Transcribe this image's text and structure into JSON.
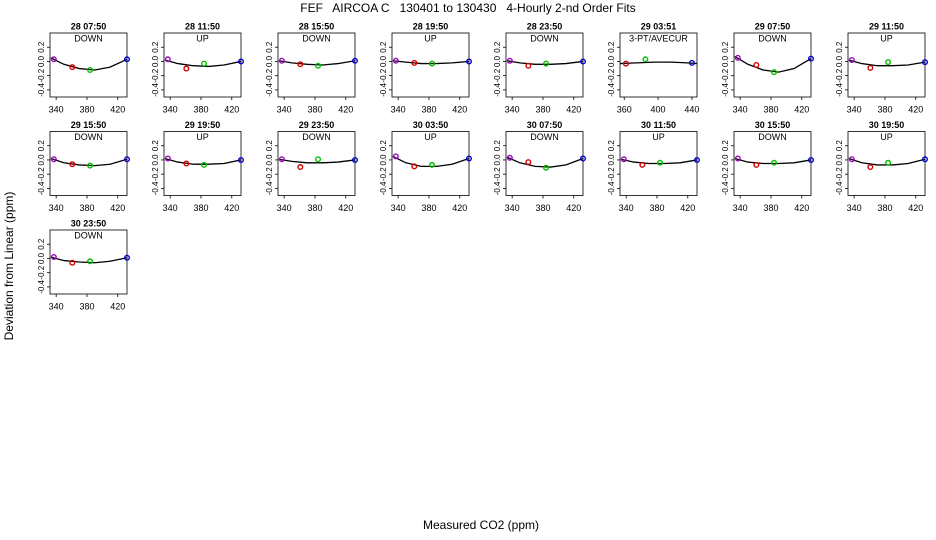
{
  "figure": {
    "title": "FEF   AIRCOA C   130401 to 130430   4-Hourly 2-nd Order Fits",
    "xlabel": "Measured CO2 (ppm)",
    "ylabel": "Deviation from Linear (ppm)"
  },
  "chart_data": [
    {
      "type": "scatter",
      "title": "28 07:50",
      "subtitle": "DOWN",
      "xlim": [
        332,
        432
      ],
      "ylim": [
        -0.5,
        0.4
      ],
      "xticks": [
        340,
        380,
        420
      ],
      "yticks": [
        0.2,
        {
          "value": 0,
          "label": "0.0"
        },
        -0.2,
        -0.4
      ],
      "points": {
        "x": [
          337,
          361,
          384,
          432
        ],
        "y": [
          0.03,
          -0.08,
          -0.12,
          0.03
        ],
        "colors": [
          "#a000c0",
          "#d00000",
          "#00c000",
          "#0000d0"
        ]
      },
      "fit": {
        "x": [
          333,
          350,
          370,
          390,
          410,
          432
        ],
        "y": [
          0.05,
          -0.04,
          -0.1,
          -0.12,
          -0.08,
          0.03
        ]
      }
    },
    {
      "type": "scatter",
      "title": "28 11:50",
      "subtitle": "UP",
      "xlim": [
        332,
        432
      ],
      "ylim": [
        -0.5,
        0.4
      ],
      "xticks": [
        340,
        380,
        420
      ],
      "yticks": [
        0.2,
        {
          "value": 0,
          "label": "0.0"
        },
        -0.2,
        -0.4
      ],
      "points": {
        "x": [
          337,
          361,
          384,
          432
        ],
        "y": [
          0.03,
          -0.1,
          -0.03,
          0.0
        ],
        "colors": [
          "#a000c0",
          "#d00000",
          "#00c000",
          "#0000d0"
        ]
      },
      "fit": {
        "x": [
          333,
          350,
          370,
          390,
          410,
          432
        ],
        "y": [
          0.02,
          -0.03,
          -0.06,
          -0.07,
          -0.05,
          0.0
        ]
      }
    },
    {
      "type": "scatter",
      "title": "28 15:50",
      "subtitle": "DOWN",
      "xlim": [
        332,
        432
      ],
      "ylim": [
        -0.5,
        0.4
      ],
      "xticks": [
        340,
        380,
        420
      ],
      "yticks": [
        0.2,
        {
          "value": 0,
          "label": "0.0"
        },
        -0.2,
        -0.4
      ],
      "points": {
        "x": [
          337,
          361,
          384,
          432
        ],
        "y": [
          0.01,
          -0.04,
          -0.06,
          0.01
        ],
        "colors": [
          "#a000c0",
          "#d00000",
          "#00c000",
          "#0000d0"
        ]
      },
      "fit": {
        "x": [
          333,
          350,
          370,
          390,
          410,
          432
        ],
        "y": [
          0.01,
          -0.02,
          -0.04,
          -0.05,
          -0.03,
          0.01
        ]
      }
    },
    {
      "type": "scatter",
      "title": "28 19:50",
      "subtitle": "UP",
      "xlim": [
        332,
        432
      ],
      "ylim": [
        -0.5,
        0.4
      ],
      "xticks": [
        340,
        380,
        420
      ],
      "yticks": [
        0.2,
        {
          "value": 0,
          "label": "0.0"
        },
        -0.2,
        -0.4
      ],
      "points": {
        "x": [
          337,
          361,
          384,
          432
        ],
        "y": [
          0.01,
          -0.02,
          -0.03,
          0.0
        ],
        "colors": [
          "#a000c0",
          "#d00000",
          "#00c000",
          "#0000d0"
        ]
      },
      "fit": {
        "x": [
          333,
          350,
          370,
          390,
          410,
          432
        ],
        "y": [
          0.01,
          -0.01,
          -0.03,
          -0.03,
          -0.02,
          0.0
        ]
      }
    },
    {
      "type": "scatter",
      "title": "28 23:50",
      "subtitle": "DOWN",
      "xlim": [
        332,
        432
      ],
      "ylim": [
        -0.5,
        0.4
      ],
      "xticks": [
        340,
        380,
        420
      ],
      "yticks": [
        0.2,
        {
          "value": 0,
          "label": "0.0"
        },
        -0.2,
        -0.4
      ],
      "points": {
        "x": [
          337,
          361,
          384,
          432
        ],
        "y": [
          0.01,
          -0.06,
          -0.03,
          0.0
        ],
        "colors": [
          "#a000c0",
          "#d00000",
          "#00c000",
          "#0000d0"
        ]
      },
      "fit": {
        "x": [
          333,
          350,
          370,
          390,
          410,
          432
        ],
        "y": [
          0.01,
          -0.02,
          -0.04,
          -0.04,
          -0.03,
          0.0
        ]
      }
    },
    {
      "type": "scatter",
      "title": "29 03:51",
      "subtitle": "3-PT/AVECUR",
      "xlim": [
        355,
        446
      ],
      "ylim": [
        -0.5,
        0.4
      ],
      "xticks": [
        360,
        400,
        440
      ],
      "yticks": [
        0.2,
        {
          "value": 0,
          "label": "0.0"
        },
        -0.2,
        -0.4
      ],
      "points": {
        "x": [
          362,
          385,
          440
        ],
        "y": [
          -0.03,
          0.03,
          -0.02
        ],
        "colors": [
          "#d00000",
          "#00c000",
          "#0000d0"
        ]
      },
      "fit": {
        "x": [
          355,
          375,
          395,
          415,
          435,
          446
        ],
        "y": [
          -0.03,
          -0.02,
          -0.01,
          -0.01,
          -0.02,
          -0.03
        ]
      }
    },
    {
      "type": "scatter",
      "title": "29 07:50",
      "subtitle": "DOWN",
      "xlim": [
        332,
        432
      ],
      "ylim": [
        -0.5,
        0.4
      ],
      "xticks": [
        340,
        380,
        420
      ],
      "yticks": [
        0.2,
        {
          "value": 0,
          "label": "0.0"
        },
        -0.2,
        -0.4
      ],
      "points": {
        "x": [
          337,
          361,
          384,
          432
        ],
        "y": [
          0.05,
          -0.05,
          -0.15,
          0.04
        ],
        "colors": [
          "#a000c0",
          "#d00000",
          "#00c000",
          "#0000d0"
        ]
      },
      "fit": {
        "x": [
          333,
          350,
          370,
          390,
          410,
          432
        ],
        "y": [
          0.07,
          -0.04,
          -0.12,
          -0.15,
          -0.1,
          0.04
        ]
      }
    },
    {
      "type": "scatter",
      "title": "29 11:50",
      "subtitle": "UP",
      "xlim": [
        332,
        432
      ],
      "ylim": [
        -0.5,
        0.4
      ],
      "xticks": [
        340,
        380,
        420
      ],
      "yticks": [
        0.2,
        {
          "value": 0,
          "label": "0.0"
        },
        -0.2,
        -0.4
      ],
      "points": {
        "x": [
          337,
          361,
          384,
          432
        ],
        "y": [
          0.02,
          -0.09,
          -0.01,
          -0.01
        ],
        "colors": [
          "#a000c0",
          "#d00000",
          "#00c000",
          "#0000d0"
        ]
      },
      "fit": {
        "x": [
          333,
          350,
          370,
          390,
          410,
          432
        ],
        "y": [
          0.02,
          -0.03,
          -0.06,
          -0.06,
          -0.05,
          -0.01
        ]
      }
    },
    {
      "type": "scatter",
      "title": "29 15:50",
      "subtitle": "DOWN",
      "xlim": [
        332,
        432
      ],
      "ylim": [
        -0.5,
        0.4
      ],
      "xticks": [
        340,
        380,
        420
      ],
      "yticks": [
        0.2,
        {
          "value": 0,
          "label": "0.0"
        },
        -0.2,
        -0.4
      ],
      "points": {
        "x": [
          337,
          361,
          384,
          432
        ],
        "y": [
          0.01,
          -0.06,
          -0.08,
          0.01
        ],
        "colors": [
          "#a000c0",
          "#d00000",
          "#00c000",
          "#0000d0"
        ]
      },
      "fit": {
        "x": [
          333,
          350,
          370,
          390,
          410,
          432
        ],
        "y": [
          0.02,
          -0.04,
          -0.07,
          -0.08,
          -0.06,
          0.01
        ]
      }
    },
    {
      "type": "scatter",
      "title": "29 19:50",
      "subtitle": "UP",
      "xlim": [
        332,
        432
      ],
      "ylim": [
        -0.5,
        0.4
      ],
      "xticks": [
        340,
        380,
        420
      ],
      "yticks": [
        0.2,
        {
          "value": 0,
          "label": "0.0"
        },
        -0.2,
        -0.4
      ],
      "points": {
        "x": [
          337,
          361,
          384,
          432
        ],
        "y": [
          0.02,
          -0.05,
          -0.07,
          0.0
        ],
        "colors": [
          "#a000c0",
          "#d00000",
          "#00c000",
          "#0000d0"
        ]
      },
      "fit": {
        "x": [
          333,
          350,
          370,
          390,
          410,
          432
        ],
        "y": [
          0.02,
          -0.03,
          -0.06,
          -0.06,
          -0.05,
          0.0
        ]
      }
    },
    {
      "type": "scatter",
      "title": "29 23:50",
      "subtitle": "DOWN",
      "xlim": [
        332,
        432
      ],
      "ylim": [
        -0.5,
        0.4
      ],
      "xticks": [
        340,
        380,
        420
      ],
      "yticks": [
        0.2,
        {
          "value": 0,
          "label": "0.0"
        },
        -0.2,
        -0.4
      ],
      "points": {
        "x": [
          337,
          361,
          384,
          432
        ],
        "y": [
          0.01,
          -0.1,
          0.01,
          0.0
        ],
        "colors": [
          "#a000c0",
          "#d00000",
          "#00c000",
          "#0000d0"
        ]
      },
      "fit": {
        "x": [
          333,
          350,
          370,
          390,
          410,
          432
        ],
        "y": [
          0.01,
          -0.02,
          -0.04,
          -0.04,
          -0.03,
          0.0
        ]
      }
    },
    {
      "type": "scatter",
      "title": "30 03:50",
      "subtitle": "UP",
      "xlim": [
        332,
        432
      ],
      "ylim": [
        -0.5,
        0.4
      ],
      "xticks": [
        340,
        380,
        420
      ],
      "yticks": [
        0.2,
        {
          "value": 0,
          "label": "0.0"
        },
        -0.2,
        -0.4
      ],
      "points": {
        "x": [
          337,
          361,
          384,
          432
        ],
        "y": [
          0.05,
          -0.09,
          -0.07,
          0.02
        ],
        "colors": [
          "#a000c0",
          "#d00000",
          "#00c000",
          "#0000d0"
        ]
      },
      "fit": {
        "x": [
          333,
          350,
          370,
          390,
          410,
          432
        ],
        "y": [
          0.05,
          -0.04,
          -0.09,
          -0.09,
          -0.06,
          0.02
        ]
      }
    },
    {
      "type": "scatter",
      "title": "30 07:50",
      "subtitle": "DOWN",
      "xlim": [
        332,
        432
      ],
      "ylim": [
        -0.5,
        0.4
      ],
      "xticks": [
        340,
        380,
        420
      ],
      "yticks": [
        0.2,
        {
          "value": 0,
          "label": "0.0"
        },
        -0.2,
        -0.4
      ],
      "points": {
        "x": [
          337,
          361,
          384,
          432
        ],
        "y": [
          0.03,
          -0.03,
          -0.11,
          0.02
        ],
        "colors": [
          "#a000c0",
          "#d00000",
          "#00c000",
          "#0000d0"
        ]
      },
      "fit": {
        "x": [
          333,
          350,
          370,
          390,
          410,
          432
        ],
        "y": [
          0.04,
          -0.04,
          -0.09,
          -0.1,
          -0.07,
          0.02
        ]
      }
    },
    {
      "type": "scatter",
      "title": "30 11:50",
      "subtitle": "UP",
      "xlim": [
        332,
        432
      ],
      "ylim": [
        -0.5,
        0.4
      ],
      "xticks": [
        340,
        380,
        420
      ],
      "yticks": [
        0.2,
        {
          "value": 0,
          "label": "0.0"
        },
        -0.2,
        -0.4
      ],
      "points": {
        "x": [
          337,
          361,
          384,
          432
        ],
        "y": [
          0.01,
          -0.07,
          -0.04,
          0.0
        ],
        "colors": [
          "#a000c0",
          "#d00000",
          "#00c000",
          "#0000d0"
        ]
      },
      "fit": {
        "x": [
          333,
          350,
          370,
          390,
          410,
          432
        ],
        "y": [
          0.01,
          -0.03,
          -0.05,
          -0.05,
          -0.04,
          0.0
        ]
      }
    },
    {
      "type": "scatter",
      "title": "30 15:50",
      "subtitle": "DOWN",
      "xlim": [
        332,
        432
      ],
      "ylim": [
        -0.5,
        0.4
      ],
      "xticks": [
        340,
        380,
        420
      ],
      "yticks": [
        0.2,
        {
          "value": 0,
          "label": "0.0"
        },
        -0.2,
        -0.4
      ],
      "points": {
        "x": [
          337,
          361,
          384,
          432
        ],
        "y": [
          0.02,
          -0.07,
          -0.04,
          0.0
        ],
        "colors": [
          "#a000c0",
          "#d00000",
          "#00c000",
          "#0000d0"
        ]
      },
      "fit": {
        "x": [
          333,
          350,
          370,
          390,
          410,
          432
        ],
        "y": [
          0.02,
          -0.03,
          -0.05,
          -0.05,
          -0.04,
          0.0
        ]
      }
    },
    {
      "type": "scatter",
      "title": "30 19:50",
      "subtitle": "UP",
      "xlim": [
        332,
        432
      ],
      "ylim": [
        -0.5,
        0.4
      ],
      "xticks": [
        340,
        380,
        420
      ],
      "yticks": [
        0.2,
        {
          "value": 0,
          "label": "0.0"
        },
        -0.2,
        -0.4
      ],
      "points": {
        "x": [
          337,
          361,
          384,
          432
        ],
        "y": [
          0.01,
          -0.1,
          -0.04,
          0.01
        ],
        "colors": [
          "#a000c0",
          "#d00000",
          "#00c000",
          "#0000d0"
        ]
      },
      "fit": {
        "x": [
          333,
          350,
          370,
          390,
          410,
          432
        ],
        "y": [
          0.02,
          -0.04,
          -0.07,
          -0.07,
          -0.05,
          0.01
        ]
      }
    },
    {
      "type": "scatter",
      "title": "30 23:50",
      "subtitle": "DOWN",
      "xlim": [
        332,
        432
      ],
      "ylim": [
        -0.5,
        0.4
      ],
      "xticks": [
        340,
        380,
        420
      ],
      "yticks": [
        0.2,
        {
          "value": 0,
          "label": "0.0"
        },
        -0.2,
        -0.4
      ],
      "points": {
        "x": [
          337,
          361,
          384,
          432
        ],
        "y": [
          0.02,
          -0.06,
          -0.04,
          0.01
        ],
        "colors": [
          "#a000c0",
          "#d00000",
          "#00c000",
          "#0000d0"
        ]
      },
      "fit": {
        "x": [
          333,
          350,
          370,
          390,
          410,
          432
        ],
        "y": [
          0.02,
          -0.03,
          -0.05,
          -0.06,
          -0.04,
          0.01
        ]
      }
    }
  ]
}
